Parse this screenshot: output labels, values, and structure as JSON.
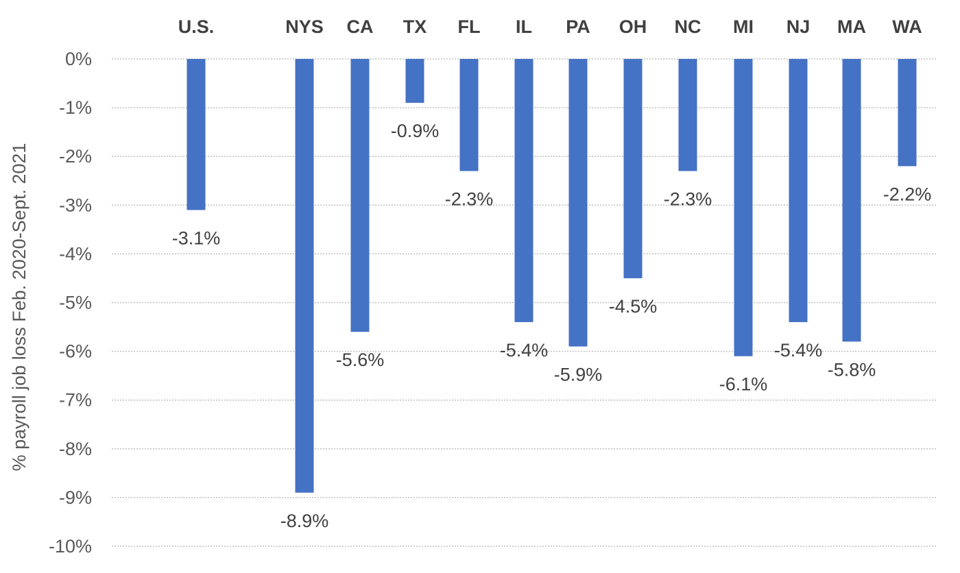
{
  "chart_data": {
    "type": "bar",
    "title": "",
    "xlabel": "",
    "ylabel": "% payroll job loss Feb. 2020-Sept. 2021",
    "categories": [
      "U.S.",
      "NYS",
      "CA",
      "TX",
      "FL",
      "IL",
      "PA",
      "OH",
      "NC",
      "MI",
      "NJ",
      "MA",
      "WA"
    ],
    "values": [
      -3.1,
      -8.9,
      -5.6,
      -0.9,
      -2.3,
      -5.4,
      -5.9,
      -4.5,
      -2.3,
      -6.1,
      -5.4,
      -5.8,
      -2.2
    ],
    "data_labels": [
      "-3.1%",
      "-8.9%",
      "-5.6%",
      "-0.9%",
      "-2.3%",
      "-5.4%",
      "-5.9%",
      "-4.5%",
      "-2.3%",
      "-6.1%",
      "-5.4%",
      "-5.8%",
      "-2.2%"
    ],
    "ylim": [
      -10,
      0
    ],
    "yticks": [
      0,
      -1,
      -2,
      -3,
      -4,
      -5,
      -6,
      -7,
      -8,
      -9,
      -10
    ],
    "ytick_labels": [
      "0%",
      "-1%",
      "-2%",
      "-3%",
      "-4%",
      "-5%",
      "-6%",
      "-7%",
      "-8%",
      "-9%",
      "-10%"
    ],
    "category_axis_position": "top",
    "grid": true,
    "bar_color": "#4472c4",
    "gridline_color": "#bfbfbf",
    "text_color": "#404040"
  }
}
